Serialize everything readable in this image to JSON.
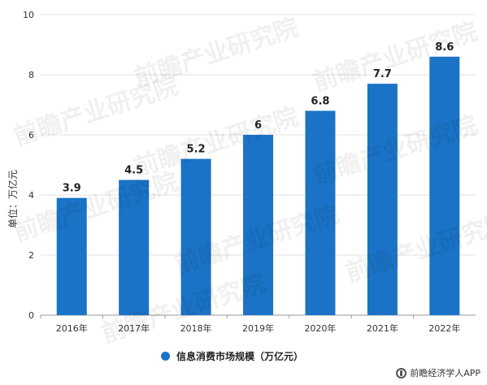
{
  "chart_data": {
    "type": "bar",
    "categories": [
      "2016年",
      "2017年",
      "2018年",
      "2019年",
      "2020年",
      "2021年",
      "2022年"
    ],
    "series": [
      {
        "name": "信息消费市场规模（万亿元）",
        "values": [
          3.9,
          4.5,
          5.2,
          6,
          6.8,
          7.7,
          8.6
        ]
      }
    ],
    "data_labels": [
      "3.9",
      "4.5",
      "5.2",
      "6",
      "6.8",
      "7.7",
      "8.6"
    ],
    "ylabel": "单位：万亿元",
    "xlabel": "",
    "ylim": [
      0,
      10
    ],
    "yticks": [
      0,
      2,
      4,
      6,
      8,
      10
    ],
    "grid": true,
    "legend": "bottom-center",
    "bar_color": "#1a73c6"
  },
  "watermark_text": "前瞻产业研究院",
  "source": "前瞻经济学人APP",
  "colors": {
    "grid": "#e0e0e0",
    "axis": "#999999",
    "text": "#333333"
  }
}
